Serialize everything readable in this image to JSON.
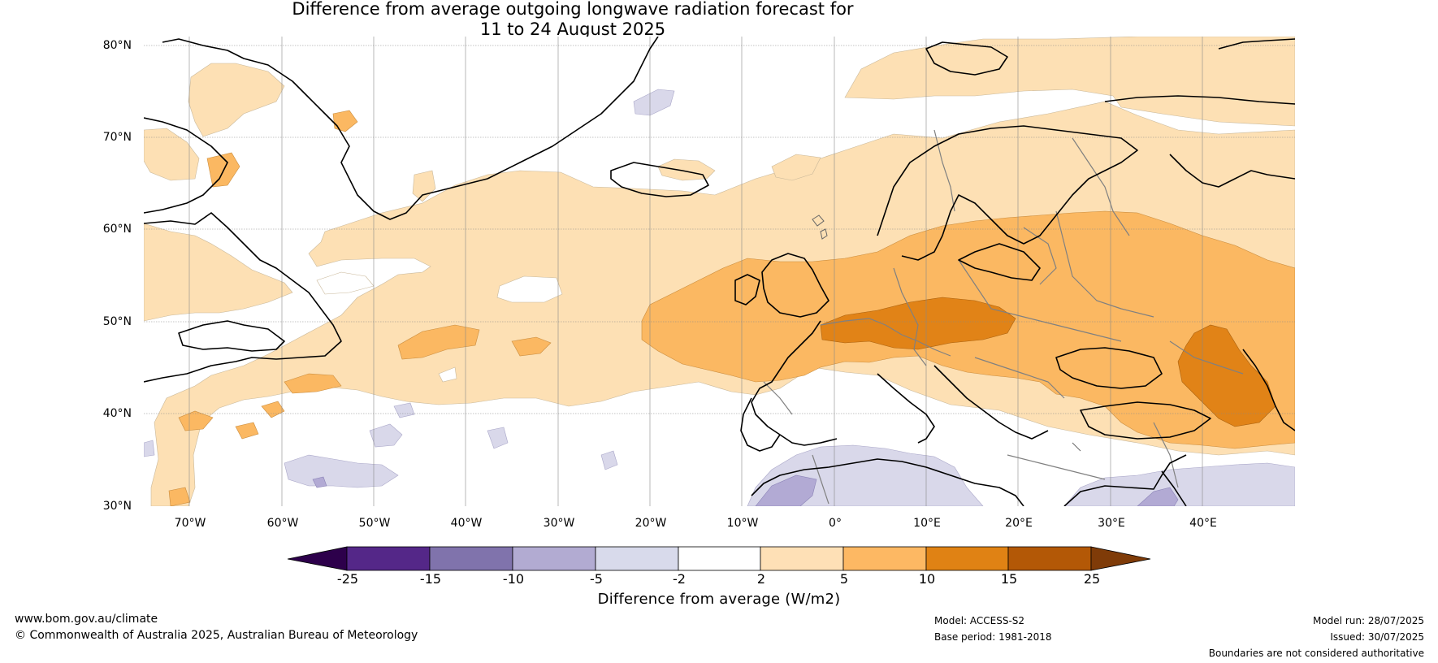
{
  "title": {
    "line1": "Difference from average outgoing longwave radiation forecast for",
    "line2": "11 to 24 August 2025"
  },
  "map": {
    "lat_labels": [
      "80°N",
      "70°N",
      "60°N",
      "50°N",
      "40°N",
      "30°N"
    ],
    "lon_labels": [
      "70°W",
      "60°W",
      "50°W",
      "40°W",
      "30°W",
      "20°W",
      "10°W",
      "0°",
      "10°E",
      "20°E",
      "30°E",
      "40°E"
    ],
    "extent": {
      "lon": [
        -75,
        50
      ],
      "lat": [
        30,
        81
      ]
    },
    "colors": {
      "lt_orange": "#fde0b4",
      "mid_orange": "#fbb862",
      "dark_orange": "#e18317",
      "lt_purple": "#d9d8ea",
      "mid_purple": "#b2aad4",
      "coast": "#000000",
      "borders": "#808080"
    }
  },
  "colorbar": {
    "ticks": [
      "-25",
      "-15",
      "-10",
      "-5",
      "-2",
      "2",
      "5",
      "10",
      "15",
      "25"
    ],
    "colors": [
      "#2d004b",
      "#542788",
      "#8073ac",
      "#b2abd2",
      "#d8daeb",
      "#ffffff",
      "#fee0b6",
      "#fdb863",
      "#e08214",
      "#b35806",
      "#7f3b08"
    ],
    "label": "Difference from average (W/m2)"
  },
  "footer": {
    "website": "www.bom.gov.au/climate",
    "copyright": "© Commonwealth of Australia 2025, Australian Bureau of Meteorology",
    "model": "Model: ACCESS-S2",
    "base_period": "Base period: 1981-2018",
    "model_run": "Model run: 28/07/2025",
    "issued": "Issued: 30/07/2025",
    "disclaimer": "Boundaries are not considered authoritative"
  }
}
